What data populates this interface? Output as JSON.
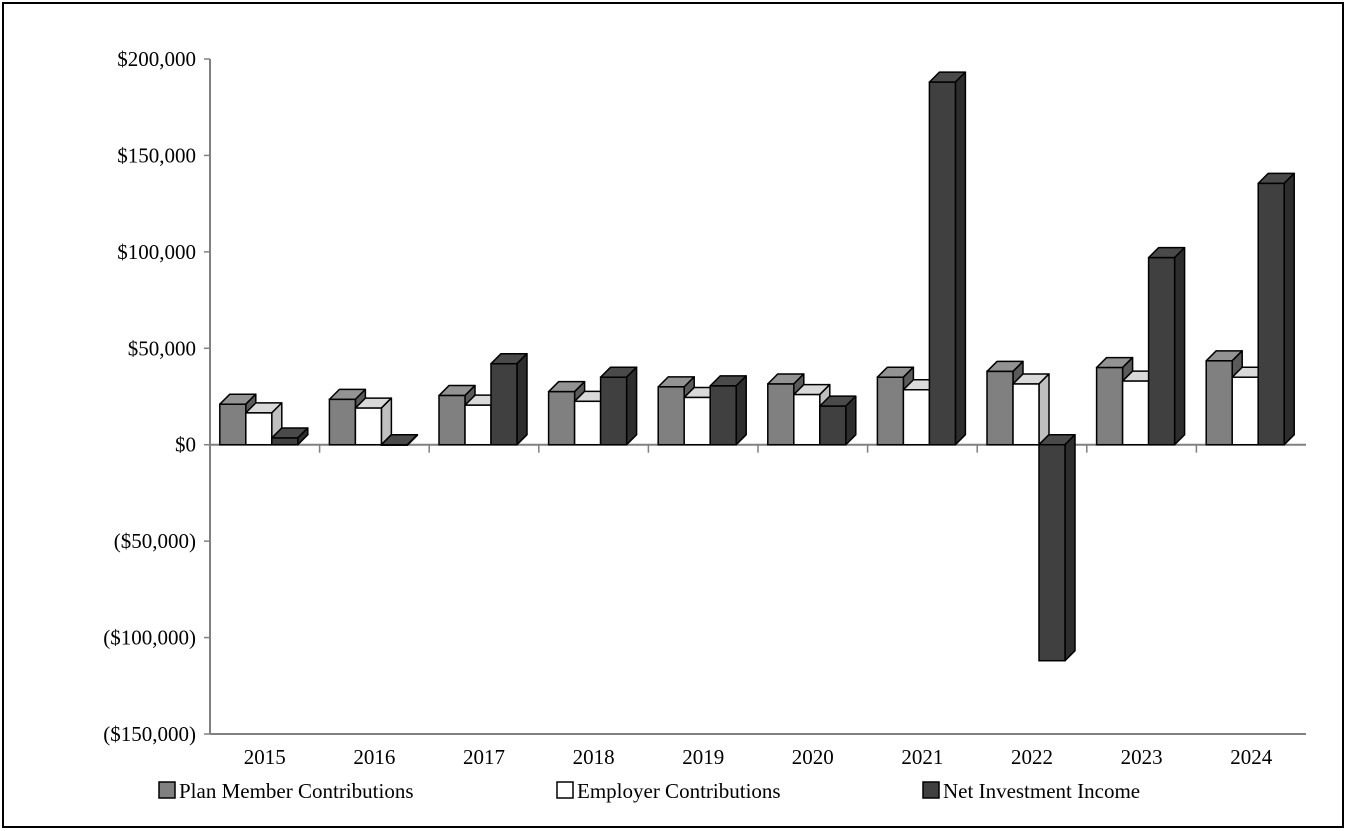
{
  "chart_data": {
    "type": "bar",
    "title": "",
    "xlabel": "",
    "ylabel": "",
    "categories": [
      "2015",
      "2016",
      "2017",
      "2018",
      "2019",
      "2020",
      "2021",
      "2022",
      "2023",
      "2024"
    ],
    "series": [
      {
        "name": "Plan Member Contributions",
        "color": "#808080",
        "values": [
          21000,
          23500,
          25500,
          27500,
          30000,
          31500,
          35000,
          38000,
          40000,
          43500
        ]
      },
      {
        "name": "Employer Contributions",
        "color": "#ffffff",
        "values": [
          16500,
          19000,
          20500,
          22500,
          24500,
          26000,
          28500,
          31500,
          33000,
          35000
        ]
      },
      {
        "name": "Net Investment Income",
        "color": "#404040",
        "values": [
          3500,
          0,
          42000,
          35000,
          30500,
          20000,
          188000,
          -112000,
          97000,
          135500
        ]
      }
    ],
    "ylim": [
      -150000,
      200000
    ],
    "yticks": [
      200000,
      150000,
      100000,
      50000,
      0,
      -50000,
      -100000,
      -150000
    ],
    "ytick_labels": [
      "$200,000",
      "$150,000",
      "$100,000",
      "$50,000",
      "$0",
      "($50,000)",
      "($100,000)",
      "($150,000)"
    ],
    "grid": false,
    "legend_position": "bottom",
    "style": "3d-clustered-column"
  }
}
